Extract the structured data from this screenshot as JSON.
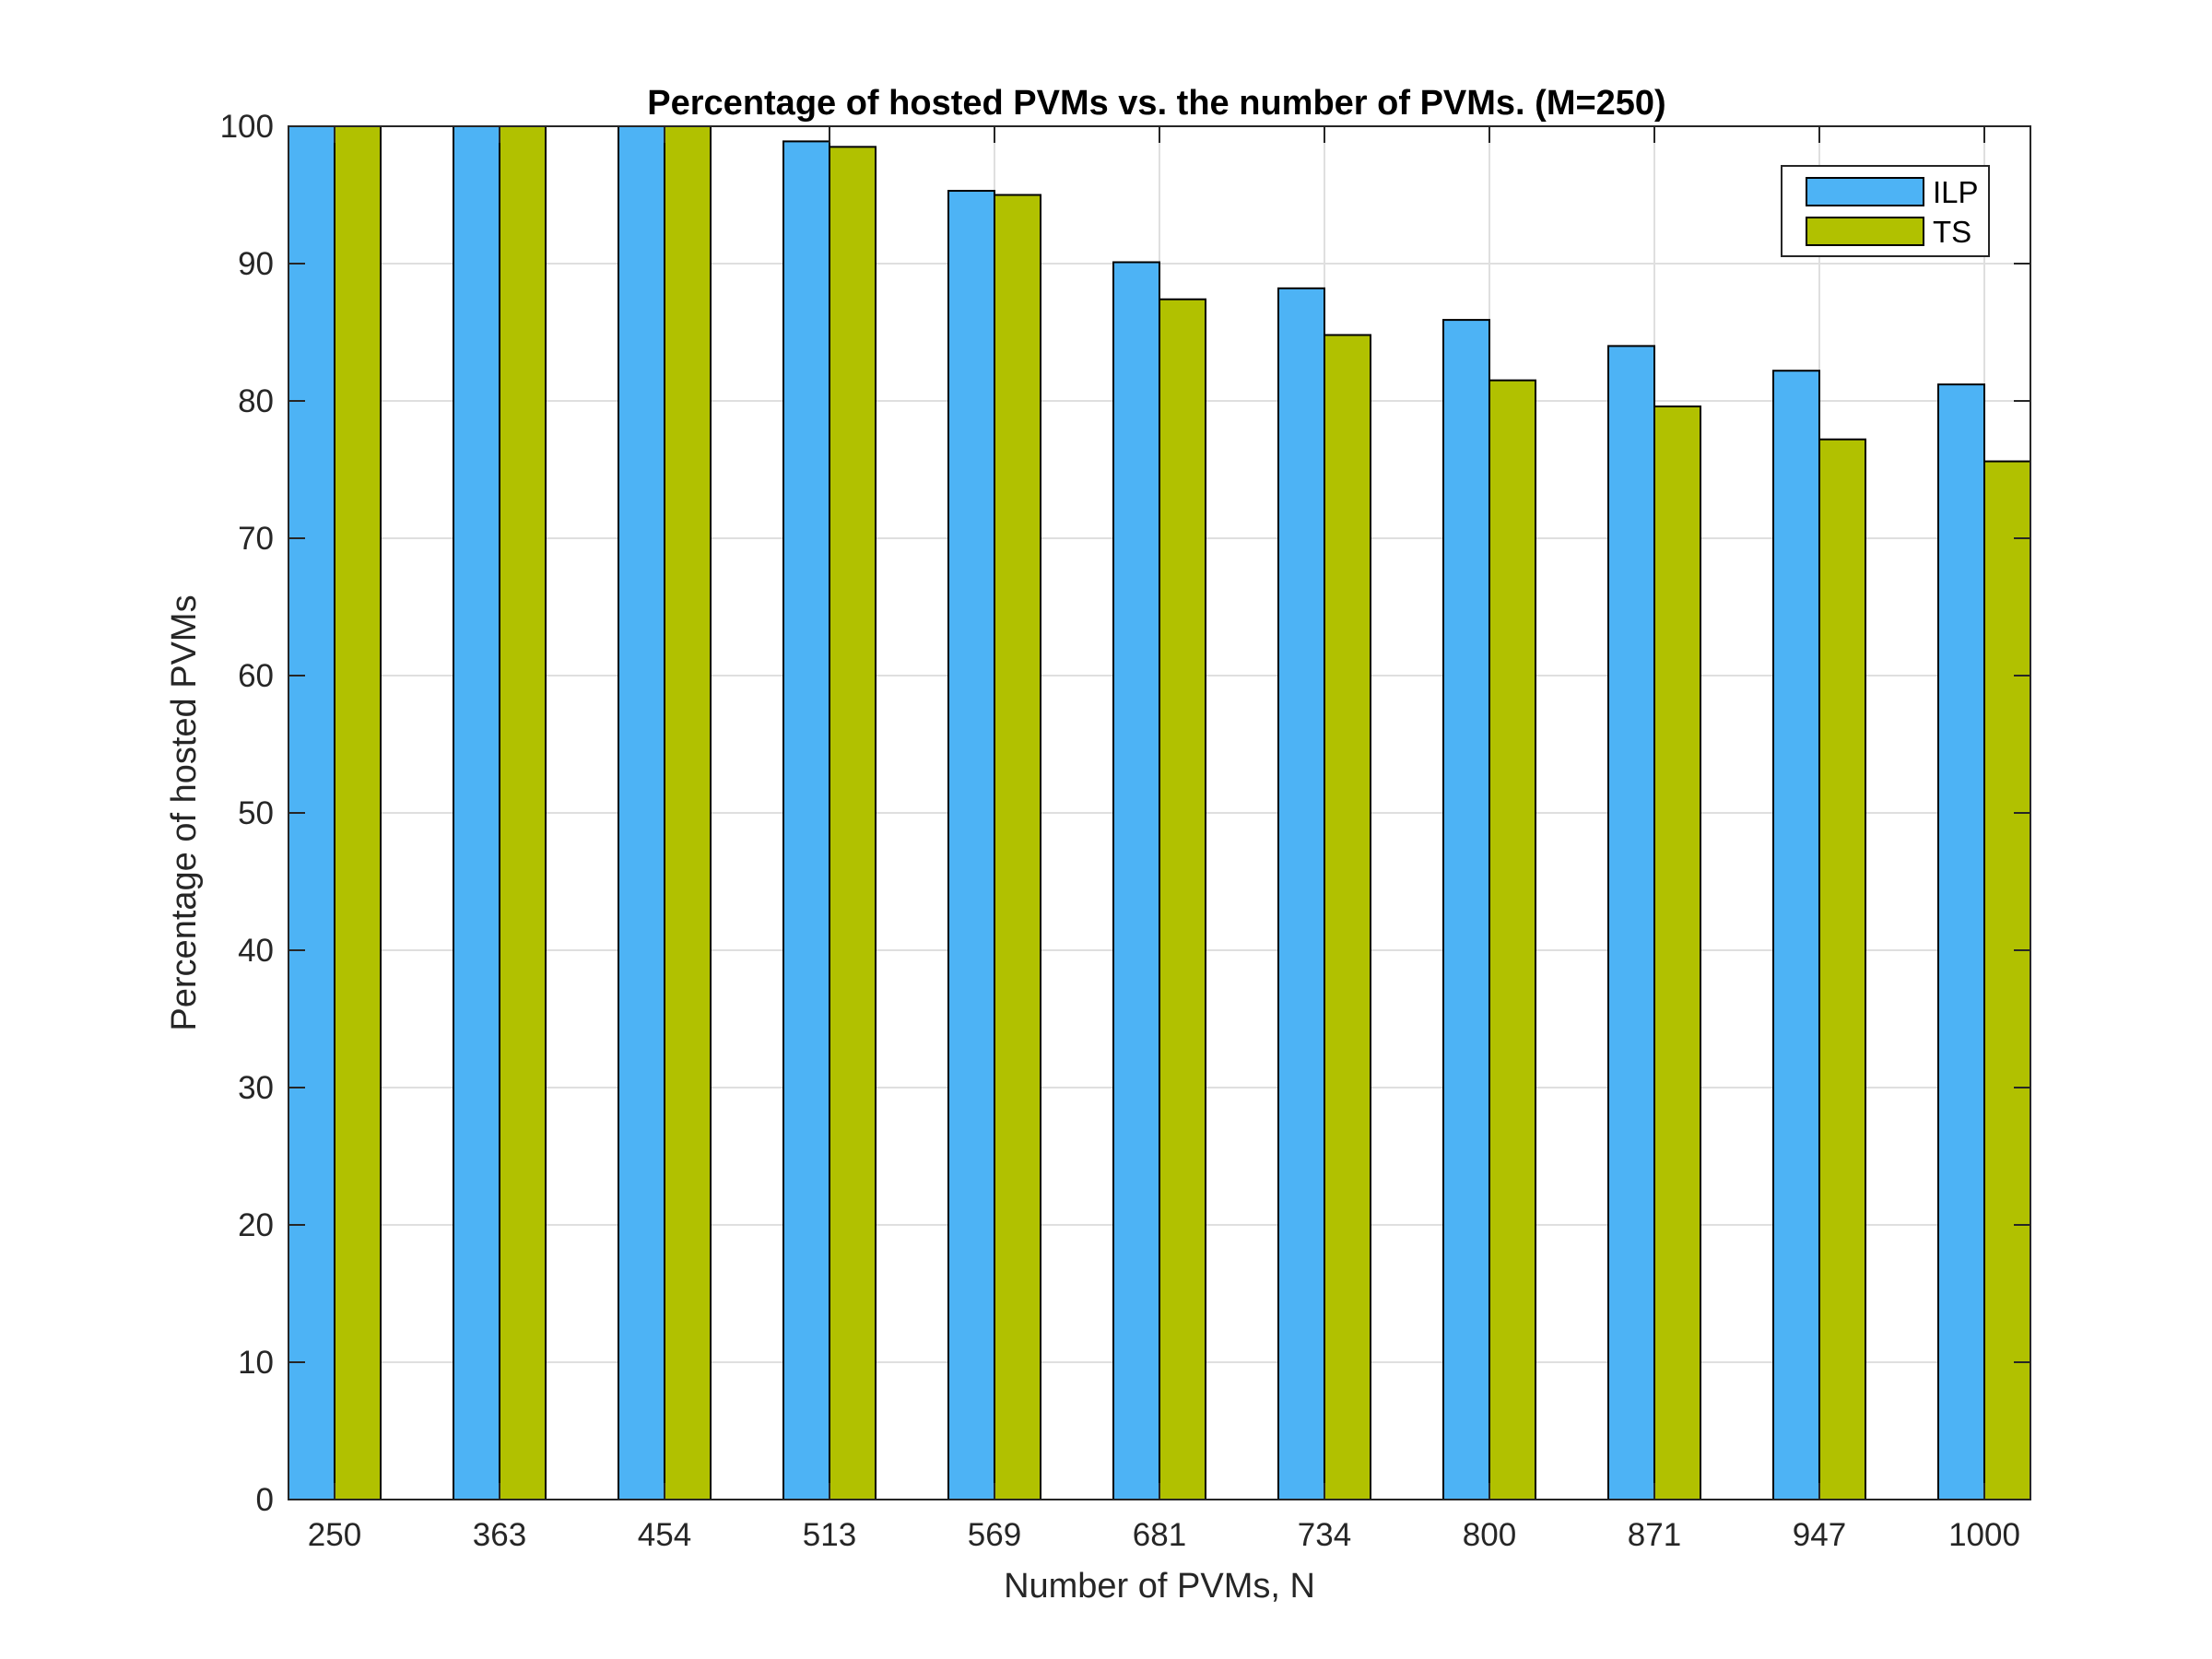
{
  "chart_data": {
    "type": "bar",
    "title": "Percentage of hosted PVMs vs. the number of PVMs. (M=250)",
    "xlabel": "Number of PVMs, N",
    "ylabel": "Percentage of hosted PVMs",
    "categories": [
      "250",
      "363",
      "454",
      "513",
      "569",
      "681",
      "734",
      "800",
      "871",
      "947",
      "1000"
    ],
    "series": [
      {
        "name": "ILP",
        "color": "#4DB3F5",
        "values": [
          100,
          100,
          100,
          98.9,
          95.3,
          90.1,
          88.2,
          85.9,
          84.0,
          82.2,
          81.2
        ]
      },
      {
        "name": "TS",
        "color": "#B1C100",
        "values": [
          100,
          100,
          100,
          98.5,
          95.0,
          87.4,
          84.8,
          81.5,
          79.6,
          77.2,
          75.6
        ]
      }
    ],
    "ylim": [
      0,
      100
    ],
    "yticks": [
      0,
      10,
      20,
      30,
      40,
      50,
      60,
      70,
      80,
      90,
      100
    ],
    "grid": true,
    "legend_position": "top-right"
  }
}
